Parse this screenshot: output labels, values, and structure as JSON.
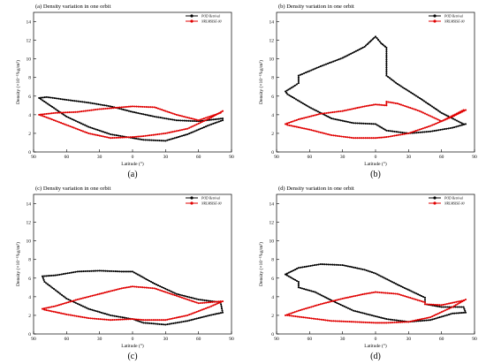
{
  "chart_data": [
    {
      "id": "a",
      "type": "line",
      "title": "(a) Density variation in one orbit",
      "caption": "(a)",
      "xlabel": "Latitude (°)",
      "ylabel": "Density (×10⁻¹³kg/m³)",
      "xticks": [
        "-90",
        "-60",
        "-30",
        "0",
        "30",
        "60",
        "90"
      ],
      "xtick_labels": [
        "90",
        "60",
        "30",
        "0",
        "30",
        "60",
        "90"
      ],
      "yticks": [
        "0",
        "2",
        "4",
        "6",
        "8",
        "10",
        "12",
        "14"
      ],
      "xlim": [
        -90,
        90
      ],
      "ylim": [
        0,
        15
      ],
      "legend": "top-right",
      "series": [
        {
          "name": "POD Retrival",
          "color": "#000000",
          "x": [
            -85,
            -78,
            -60,
            -40,
            -20,
            0,
            20,
            40,
            60,
            82,
            82,
            70,
            50,
            30,
            10,
            0,
            -20,
            -40,
            -60,
            -80,
            -85
          ],
          "y": [
            5.8,
            5.9,
            5.6,
            5.3,
            4.9,
            4.3,
            3.8,
            3.4,
            3.3,
            3.6,
            3.4,
            2.9,
            1.9,
            1.2,
            1.3,
            1.5,
            1.9,
            2.7,
            3.8,
            5.4,
            5.8
          ]
        },
        {
          "name": "NRLMSISE-00",
          "color": "#e00000",
          "x": [
            -85,
            -70,
            -50,
            -30,
            -10,
            0,
            20,
            40,
            60,
            80,
            82,
            70,
            50,
            30,
            10,
            0,
            -20,
            -40,
            -60,
            -80,
            -85
          ],
          "y": [
            4.0,
            4.2,
            4.3,
            4.6,
            4.8,
            4.9,
            4.8,
            4.0,
            3.4,
            4.2,
            4.4,
            3.6,
            2.5,
            2.0,
            1.7,
            1.6,
            1.5,
            2.0,
            2.9,
            3.8,
            4.0
          ]
        }
      ]
    },
    {
      "id": "b",
      "type": "line",
      "title": "(b) Density variation in one orbit",
      "caption": "(b)",
      "xlabel": "Latitude (°)",
      "ylabel": "Density (×10⁻¹³kg/m³)",
      "xticks": [
        "-90",
        "-60",
        "-30",
        "0",
        "30",
        "60",
        "90"
      ],
      "xtick_labels": [
        "90",
        "60",
        "30",
        "0",
        "30",
        "60",
        "90"
      ],
      "yticks": [
        "0",
        "2",
        "4",
        "6",
        "8",
        "10",
        "12",
        "14"
      ],
      "xlim": [
        -90,
        90
      ],
      "ylim": [
        0,
        15
      ],
      "legend": "top-right",
      "series": [
        {
          "name": "POD Retrival",
          "color": "#000000",
          "x": [
            -82,
            -75,
            -70,
            -70,
            -50,
            -30,
            -10,
            0,
            5,
            10,
            10,
            20,
            40,
            60,
            80,
            82,
            70,
            50,
            30,
            10,
            0,
            -20,
            -40,
            -60,
            -80,
            -82
          ],
          "y": [
            6.5,
            7.0,
            7.4,
            8.2,
            9.2,
            10.1,
            11.3,
            12.4,
            11.7,
            11.2,
            8.2,
            7.3,
            5.8,
            4.2,
            3.0,
            3.0,
            2.6,
            2.2,
            2.0,
            2.3,
            3.0,
            3.1,
            3.6,
            4.8,
            6.2,
            6.5
          ]
        },
        {
          "name": "NRLMSISE-00",
          "color": "#e00000",
          "x": [
            -82,
            -70,
            -50,
            -30,
            -10,
            0,
            10,
            10,
            20,
            40,
            60,
            80,
            82,
            70,
            50,
            30,
            10,
            0,
            -20,
            -40,
            -60,
            -80,
            -82
          ],
          "y": [
            3.0,
            3.5,
            4.1,
            4.4,
            4.9,
            5.1,
            5.0,
            5.4,
            5.2,
            4.4,
            3.3,
            4.5,
            4.5,
            3.8,
            2.8,
            2.0,
            1.6,
            1.5,
            1.5,
            1.8,
            2.4,
            2.9,
            3.0
          ]
        }
      ]
    },
    {
      "id": "c",
      "type": "line",
      "title": "(c) Density variation in one orbit",
      "caption": "(c)",
      "xlabel": "Latitude (°)",
      "ylabel": "Density (×10⁻¹³kg/m³)",
      "xticks": [
        "-90",
        "-60",
        "-30",
        "0",
        "30",
        "60",
        "90"
      ],
      "xtick_labels": [
        "90",
        "60",
        "30",
        "0",
        "30",
        "60",
        "90"
      ],
      "yticks": [
        "0",
        "2",
        "4",
        "6",
        "8",
        "10",
        "12",
        "14"
      ],
      "xlim": [
        -90,
        90
      ],
      "ylim": [
        0,
        15
      ],
      "legend": "top-right",
      "series": [
        {
          "name": "POD Retrival",
          "color": "#000000",
          "x": [
            -82,
            -70,
            -50,
            -30,
            -10,
            0,
            20,
            40,
            60,
            80,
            82,
            70,
            50,
            30,
            10,
            0,
            -20,
            -40,
            -60,
            -80,
            -82
          ],
          "y": [
            6.2,
            6.3,
            6.7,
            6.8,
            6.7,
            6.7,
            5.4,
            4.3,
            3.7,
            3.4,
            2.3,
            2.0,
            1.4,
            1.0,
            1.2,
            1.6,
            2.0,
            2.7,
            3.8,
            5.6,
            6.2
          ]
        },
        {
          "name": "NRLMSISE-00",
          "color": "#e00000",
          "x": [
            -82,
            -70,
            -50,
            -30,
            -10,
            0,
            20,
            40,
            60,
            80,
            82,
            70,
            50,
            30,
            10,
            0,
            -20,
            -40,
            -60,
            -80,
            -82
          ],
          "y": [
            2.7,
            3.0,
            3.7,
            4.3,
            4.9,
            5.1,
            4.9,
            4.1,
            3.3,
            3.5,
            3.5,
            2.9,
            2.0,
            1.5,
            1.5,
            1.6,
            1.5,
            1.7,
            2.1,
            2.6,
            2.7
          ]
        }
      ]
    },
    {
      "id": "d",
      "type": "line",
      "title": "(d) Density variation in one orbit",
      "caption": "(d)",
      "xlabel": "Latitude (°)",
      "ylabel": "Density (×10⁻¹³kg/m³)",
      "xticks": [
        "-90",
        "-60",
        "-30",
        "0",
        "30",
        "60",
        "90"
      ],
      "xtick_labels": [
        "90",
        "60",
        "30",
        "0",
        "30",
        "60",
        "90"
      ],
      "yticks": [
        "0",
        "2",
        "4",
        "6",
        "8",
        "10",
        "12",
        "14"
      ],
      "xlim": [
        -90,
        90
      ],
      "ylim": [
        0,
        15
      ],
      "legend": "top-right",
      "series": [
        {
          "name": "POD Retrival",
          "color": "#000000",
          "x": [
            -82,
            -70,
            -50,
            -30,
            -10,
            0,
            20,
            45,
            45,
            60,
            80,
            82,
            70,
            50,
            30,
            10,
            0,
            -20,
            -40,
            -55,
            -70,
            -70,
            -82
          ],
          "y": [
            6.4,
            7.1,
            7.5,
            7.4,
            6.9,
            6.5,
            5.3,
            3.9,
            3.2,
            2.9,
            2.9,
            2.3,
            2.2,
            1.5,
            1.3,
            1.6,
            1.9,
            2.5,
            3.6,
            4.5,
            5.0,
            5.6,
            6.4
          ]
        },
        {
          "name": "NRLMSISE-00",
          "color": "#e00000",
          "x": [
            -82,
            -70,
            -50,
            -30,
            -10,
            0,
            20,
            45,
            45,
            60,
            80,
            82,
            70,
            50,
            30,
            10,
            0,
            -20,
            -40,
            -60,
            -80,
            -82
          ],
          "y": [
            2.0,
            2.5,
            3.2,
            3.8,
            4.3,
            4.5,
            4.3,
            3.4,
            3.2,
            3.1,
            3.6,
            3.7,
            2.9,
            1.8,
            1.3,
            1.2,
            1.2,
            1.3,
            1.4,
            1.7,
            2.0,
            2.0
          ]
        }
      ]
    }
  ]
}
